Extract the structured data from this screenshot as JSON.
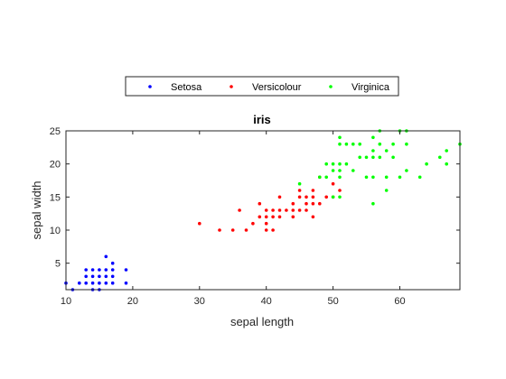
{
  "chart_data": {
    "type": "scatter",
    "title": "iris",
    "xlabel": "sepal length",
    "ylabel": "sepal width",
    "xlim": [
      10,
      69
    ],
    "ylim": [
      1,
      25
    ],
    "xticks": [
      10,
      20,
      30,
      40,
      50,
      60
    ],
    "yticks": [
      5,
      10,
      15,
      20,
      25
    ],
    "grid": false,
    "legend_placement": "top-center-horizontal",
    "series": [
      {
        "name": "Setosa",
        "color": "#0000ff",
        "points": [
          [
            10,
            2
          ],
          [
            11,
            1
          ],
          [
            12,
            2
          ],
          [
            13,
            2
          ],
          [
            13,
            3
          ],
          [
            13,
            4
          ],
          [
            14,
            1
          ],
          [
            14,
            2
          ],
          [
            14,
            3
          ],
          [
            15,
            1
          ],
          [
            15,
            2
          ],
          [
            15,
            3
          ],
          [
            15,
            4
          ],
          [
            16,
            2
          ],
          [
            16,
            3
          ],
          [
            16,
            4
          ],
          [
            16,
            6
          ],
          [
            17,
            2
          ],
          [
            17,
            3
          ],
          [
            17,
            4
          ],
          [
            17,
            5
          ],
          [
            19,
            2
          ],
          [
            19,
            4
          ],
          [
            14,
            4
          ]
        ]
      },
      {
        "name": "Versicolour",
        "color": "#ff0000",
        "points": [
          [
            30,
            11
          ],
          [
            33,
            10
          ],
          [
            35,
            10
          ],
          [
            36,
            13
          ],
          [
            37,
            10
          ],
          [
            38,
            11
          ],
          [
            39,
            12
          ],
          [
            39,
            14
          ],
          [
            40,
            10
          ],
          [
            40,
            11
          ],
          [
            40,
            12
          ],
          [
            40,
            13
          ],
          [
            41,
            10
          ],
          [
            41,
            12
          ],
          [
            41,
            13
          ],
          [
            42,
            12
          ],
          [
            42,
            13
          ],
          [
            42,
            15
          ],
          [
            43,
            13
          ],
          [
            44,
            12
          ],
          [
            44,
            13
          ],
          [
            44,
            14
          ],
          [
            45,
            13
          ],
          [
            45,
            15
          ],
          [
            45,
            16
          ],
          [
            46,
            13
          ],
          [
            46,
            14
          ],
          [
            46,
            15
          ],
          [
            47,
            12
          ],
          [
            47,
            14
          ],
          [
            47,
            15
          ],
          [
            47,
            16
          ],
          [
            48,
            14
          ],
          [
            48,
            18
          ],
          [
            49,
            15
          ],
          [
            50,
            15
          ],
          [
            50,
            17
          ],
          [
            51,
            16
          ]
        ]
      },
      {
        "name": "Virginica",
        "color": "#00ff00",
        "points": [
          [
            45,
            17
          ],
          [
            48,
            18
          ],
          [
            49,
            18
          ],
          [
            49,
            20
          ],
          [
            50,
            19
          ],
          [
            50,
            20
          ],
          [
            50,
            15
          ],
          [
            51,
            15
          ],
          [
            51,
            18
          ],
          [
            51,
            19
          ],
          [
            51,
            20
          ],
          [
            51,
            23
          ],
          [
            51,
            24
          ],
          [
            52,
            20
          ],
          [
            52,
            23
          ],
          [
            53,
            19
          ],
          [
            53,
            23
          ],
          [
            54,
            21
          ],
          [
            54,
            23
          ],
          [
            55,
            18
          ],
          [
            55,
            21
          ],
          [
            56,
            14
          ],
          [
            56,
            18
          ],
          [
            56,
            21
          ],
          [
            56,
            22
          ],
          [
            56,
            24
          ],
          [
            57,
            21
          ],
          [
            57,
            23
          ],
          [
            58,
            16
          ],
          [
            58,
            18
          ],
          [
            58,
            22
          ],
          [
            59,
            21
          ],
          [
            59,
            23
          ],
          [
            60,
            18
          ],
          [
            60,
            25
          ],
          [
            61,
            19
          ],
          [
            61,
            23
          ],
          [
            61,
            25
          ],
          [
            63,
            18
          ],
          [
            64,
            20
          ],
          [
            66,
            21
          ],
          [
            67,
            20
          ],
          [
            67,
            22
          ],
          [
            69,
            23
          ],
          [
            57,
            25
          ]
        ]
      }
    ]
  }
}
